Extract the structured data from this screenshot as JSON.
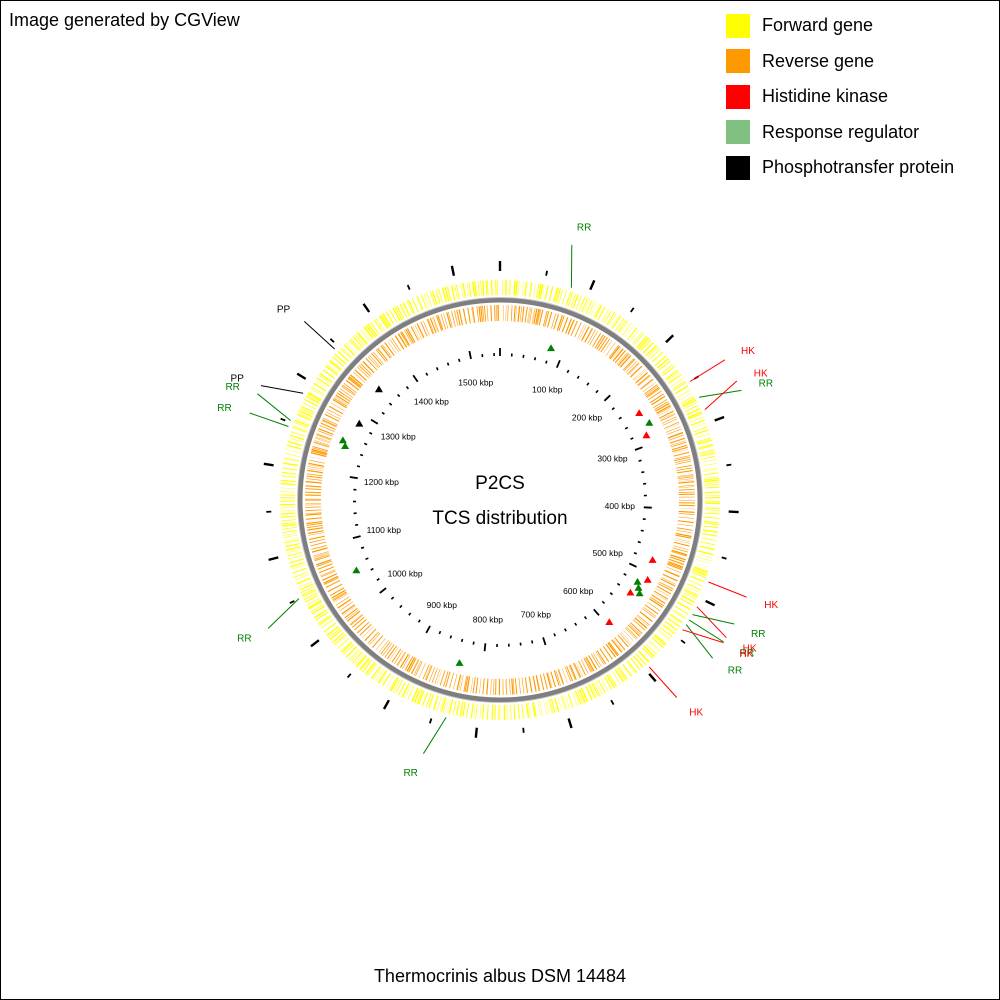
{
  "credit": "Image generated by CGView",
  "legend": [
    {
      "label": "Forward gene",
      "color": "#ffff00"
    },
    {
      "label": "Reverse gene",
      "color": "#ff9900"
    },
    {
      "label": "Histidine kinase",
      "color": "#ff0000"
    },
    {
      "label": "Response regulator",
      "color": "#80c080"
    },
    {
      "label": "Phosphotransfer protein",
      "color": "#000000"
    }
  ],
  "map": {
    "center_title": "P2CS",
    "center_subtitle": "TCS distribution",
    "genome_length_kbp": 1550,
    "tick_labels": [
      "100 kbp",
      "200 kbp",
      "300 kbp",
      "400 kbp",
      "500 kbp",
      "600 kbp",
      "700 kbp",
      "800 kbp",
      "900 kbp",
      "1000 kbp",
      "1100 kbp",
      "1200 kbp",
      "1300 kbp",
      "1400 kbp",
      "1500 kbp"
    ],
    "tick_positions_kbp": [
      100,
      200,
      300,
      400,
      500,
      600,
      700,
      800,
      900,
      1000,
      1100,
      1200,
      1300,
      1400,
      1500
    ],
    "markers": [
      {
        "type": "RR",
        "position_kbp": 80
      },
      {
        "type": "HK",
        "position_kbp": 250
      },
      {
        "type": "RR",
        "position_kbp": 270
      },
      {
        "type": "HK",
        "position_kbp": 285
      },
      {
        "type": "HK",
        "position_kbp": 480
      },
      {
        "type": "HK",
        "position_kbp": 510
      },
      {
        "type": "RR",
        "position_kbp": 520
      },
      {
        "type": "RR",
        "position_kbp": 527
      },
      {
        "type": "RR",
        "position_kbp": 533
      },
      {
        "type": "HK",
        "position_kbp": 540
      },
      {
        "type": "HK",
        "position_kbp": 595
      },
      {
        "type": "RR",
        "position_kbp": 835
      },
      {
        "type": "RR",
        "position_kbp": 1050
      },
      {
        "type": "RR",
        "position_kbp": 1245
      },
      {
        "type": "RR",
        "position_kbp": 1252
      },
      {
        "type": "PP",
        "position_kbp": 1285
      },
      {
        "type": "PP",
        "position_kbp": 1345
      }
    ],
    "callouts": [
      {
        "text": "RR",
        "type": "RR",
        "position_kbp": 80
      },
      {
        "text": "HK",
        "type": "HK",
        "position_kbp": 250
      },
      {
        "text": "RR",
        "type": "RR",
        "position_kbp": 270
      },
      {
        "text": "HK",
        "type": "HK",
        "position_kbp": 285
      },
      {
        "text": "HK",
        "type": "HK",
        "position_kbp": 480
      },
      {
        "text": "HK",
        "type": "HK",
        "position_kbp": 510
      },
      {
        "text": "RR",
        "type": "RR",
        "position_kbp": 520
      },
      {
        "text": "RR",
        "type": "RR",
        "position_kbp": 527
      },
      {
        "text": "RR",
        "type": "RR",
        "position_kbp": 533
      },
      {
        "text": "HK",
        "type": "HK",
        "position_kbp": 540
      },
      {
        "text": "HK",
        "type": "HK",
        "position_kbp": 595
      },
      {
        "text": "RR",
        "type": "RR",
        "position_kbp": 835
      },
      {
        "text": "RR",
        "type": "RR",
        "position_kbp": 1050
      },
      {
        "text": "RR",
        "type": "RR",
        "position_kbp": 1245
      },
      {
        "text": "RR",
        "type": "RR",
        "position_kbp": 1252
      },
      {
        "text": "PP",
        "type": "PP",
        "position_kbp": 1285
      },
      {
        "text": "PP",
        "type": "PP",
        "position_kbp": 1345
      }
    ],
    "type_colors": {
      "HK": "#ff0000",
      "RR": "#008000",
      "PP": "#000000"
    }
  },
  "caption": "Thermocrinis albus DSM 14484"
}
